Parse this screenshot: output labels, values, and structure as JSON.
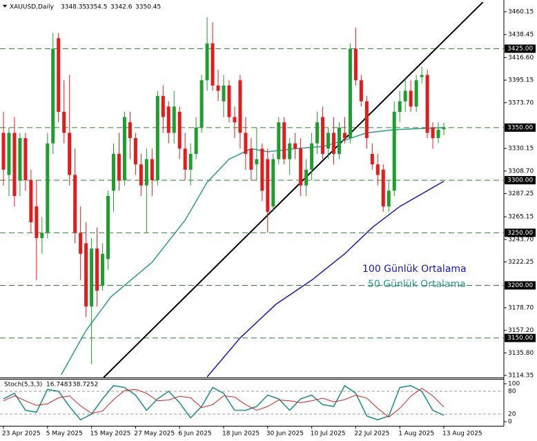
{
  "chart_data": {
    "type": "candlestick",
    "symbol": "XAUUSD,Daily",
    "categories": [
      "23 Apr 2025",
      null,
      null,
      null,
      null,
      null,
      null,
      null,
      "5 May 2025",
      null,
      null,
      null,
      null,
      null,
      null,
      null,
      "15 May 2025",
      null,
      null,
      null,
      null,
      null,
      null,
      null,
      "27 May 2025",
      null,
      null,
      null,
      null,
      null,
      null,
      null,
      "6 Jun 2025",
      null,
      null,
      null,
      null,
      null,
      null,
      null,
      "18 Jun 2025",
      null,
      null,
      null,
      null,
      null,
      null,
      null,
      "30 Jun 2025",
      null,
      null,
      null,
      null,
      null,
      null,
      null,
      "10 Jul 2025",
      null,
      null,
      null,
      null,
      null,
      null,
      null,
      "22 Jul 2025",
      null,
      null,
      null,
      null,
      null,
      null,
      null,
      "1 Aug 2025",
      null,
      null,
      null,
      null,
      null,
      null,
      null,
      "13 Aug 2025"
    ],
    "open": [
      3345,
      3305,
      3345,
      3300,
      3340,
      3300,
      3275,
      3245,
      3250,
      3335,
      3435,
      3365,
      3345,
      3305,
      3250,
      3240,
      3180,
      3235,
      3200,
      3225,
      3290,
      3325,
      3300,
      3355,
      3340,
      3315,
      3295,
      3320,
      3300,
      3380,
      3370,
      3345,
      3365,
      3330,
      3310,
      3325,
      3350,
      3395,
      3430,
      3390,
      3375,
      3390,
      3360,
      3395,
      3345,
      3330,
      3315,
      3330,
      3320,
      3275,
      3320,
      3355,
      3320,
      3335,
      3330,
      3295,
      3310,
      3335,
      3360,
      3330,
      3345,
      3325,
      3345,
      3340,
      3425,
      3395,
      3375,
      3325,
      3315,
      3310,
      3275,
      3290,
      3365,
      3375,
      3385,
      3370,
      3398,
      3400,
      3350,
      3340,
      3348.35
    ],
    "high": [
      3365,
      3350,
      3360,
      3345,
      3345,
      3310,
      3300,
      3265,
      3345,
      3440,
      3440,
      3395,
      3400,
      3330,
      3275,
      3260,
      3245,
      3255,
      3240,
      3290,
      3335,
      3345,
      3365,
      3365,
      3345,
      3325,
      3330,
      3330,
      3385,
      3390,
      3375,
      3385,
      3370,
      3345,
      3335,
      3360,
      3400,
      3455,
      3450,
      3405,
      3400,
      3395,
      3370,
      3400,
      3360,
      3340,
      3350,
      3335,
      3330,
      3325,
      3360,
      3360,
      3340,
      3345,
      3340,
      3320,
      3345,
      3365,
      3370,
      3350,
      3360,
      3355,
      3360,
      3430,
      3445,
      3400,
      3380,
      3335,
      3325,
      3315,
      3300,
      3375,
      3385,
      3395,
      3395,
      3400,
      3408,
      3405,
      3355,
      3355,
      3354.5
    ],
    "low": [
      3295,
      3285,
      3275,
      3285,
      3290,
      3250,
      3205,
      3230,
      3245,
      3325,
      3355,
      3335,
      3295,
      3240,
      3205,
      3170,
      3125,
      3180,
      3195,
      3215,
      3270,
      3290,
      3295,
      3320,
      3305,
      3285,
      3250,
      3285,
      3295,
      3345,
      3335,
      3335,
      3320,
      3300,
      3295,
      3320,
      3345,
      3385,
      3385,
      3375,
      3360,
      3355,
      3340,
      3330,
      3310,
      3300,
      3300,
      3280,
      3250,
      3270,
      3315,
      3315,
      3305,
      3320,
      3285,
      3285,
      3300,
      3325,
      3320,
      3320,
      3315,
      3320,
      3335,
      3335,
      3390,
      3370,
      3330,
      3310,
      3295,
      3270,
      3270,
      3285,
      3355,
      3365,
      3365,
      3365,
      3392,
      3340,
      3330,
      3335,
      3342.6
    ],
    "close": [
      3310,
      3345,
      3285,
      3340,
      3300,
      3260,
      3245,
      3250,
      3335,
      3425,
      3365,
      3345,
      3305,
      3250,
      3230,
      3180,
      3235,
      3195,
      3230,
      3285,
      3325,
      3300,
      3360,
      3340,
      3315,
      3295,
      3320,
      3300,
      3380,
      3360,
      3345,
      3370,
      3330,
      3310,
      3325,
      3350,
      3395,
      3430,
      3390,
      3385,
      3390,
      3360,
      3355,
      3345,
      3325,
      3310,
      3320,
      3290,
      3270,
      3320,
      3355,
      3320,
      3335,
      3330,
      3295,
      3310,
      3335,
      3355,
      3325,
      3345,
      3325,
      3350,
      3340,
      3425,
      3395,
      3375,
      3340,
      3315,
      3305,
      3275,
      3290,
      3365,
      3375,
      3385,
      3370,
      3395,
      3400,
      3345,
      3340,
      3348,
      3350.45
    ],
    "bull_color": "#1e9e2e",
    "bear_color": "#e31b1b",
    "ylim": [
      3112.4,
      3471.3
    ],
    "yticks": [
      3460.15,
      3438.45,
      {
        "value": 3416.6,
        "label": "3416.60"
      },
      3395.15,
      {
        "value": 3373.7,
        "label": "3373.70"
      },
      3330.15,
      {
        "value": 3308.7,
        "label": "3308.70"
      },
      3287.25,
      3265.15,
      {
        "value": 3243.7,
        "label": "3243.70"
      },
      3222.25,
      {
        "value": 3178.7,
        "label": "3178.70"
      },
      {
        "value": 3157.2,
        "label": "3157.20"
      },
      {
        "value": 3135.8,
        "label": "3135.80"
      },
      3114.35
    ],
    "levels": [
      {
        "value": 3425,
        "label": "3425.00"
      },
      {
        "value": 3350,
        "label": "3350.00"
      },
      {
        "value": 3300,
        "label": "3300.00"
      },
      {
        "value": 3250,
        "label": "3250.00"
      },
      {
        "value": 3200,
        "label": "3200.00"
      },
      {
        "value": 3150,
        "label": "3150.00"
      }
    ],
    "level_color": "#2e7d32",
    "trendline": {
      "x": [
        18.2,
        87.1
      ],
      "values": [
        3112.4,
        3469.3
      ],
      "color": "#000000"
    },
    "series": [
      {
        "name": "100 Günlük Ortalama",
        "color": "#1414c8",
        "x": [
          37,
          43,
          49.5,
          56,
          62,
          67,
          72,
          80
        ],
        "values": [
          3113,
          3150,
          3182,
          3205,
          3230,
          3255,
          3275,
          3299
        ]
      },
      {
        "name": "50 Günlük Ortalama",
        "color": "#2a9a8a",
        "x": [
          10.5,
          15,
          19.5,
          27,
          33,
          37,
          41,
          45,
          48,
          53,
          58,
          62,
          66,
          71,
          80
        ],
        "values": [
          3115,
          3157,
          3189,
          3222,
          3262,
          3298,
          3320,
          3330,
          3327,
          3330,
          3332,
          3338,
          3345,
          3348,
          3350
        ]
      }
    ],
    "stoch": {
      "title": "Stoch(5,3,3)",
      "x": [
        0,
        2,
        4,
        6,
        8,
        10,
        12,
        14,
        16,
        18,
        20,
        22,
        24,
        26,
        28,
        30,
        32,
        34,
        36,
        38,
        40,
        42,
        44,
        46,
        48,
        50,
        52,
        54,
        56,
        58,
        60,
        62,
        64,
        66,
        68,
        70,
        72,
        74,
        76,
        78,
        80
      ],
      "k": [
        60,
        75,
        30,
        25,
        85,
        80,
        40,
        5,
        20,
        60,
        95,
        90,
        70,
        30,
        60,
        80,
        50,
        10,
        40,
        90,
        75,
        30,
        30,
        40,
        70,
        60,
        30,
        60,
        70,
        45,
        40,
        95,
        75,
        15,
        5,
        15,
        90,
        95,
        80,
        30,
        16.7483
      ],
      "d": [
        55,
        68,
        55,
        43,
        47,
        63,
        68,
        42,
        22,
        28,
        58,
        82,
        85,
        75,
        55,
        57,
        67,
        63,
        37,
        45,
        68,
        65,
        45,
        30,
        40,
        57,
        55,
        50,
        55,
        62,
        52,
        58,
        70,
        62,
        35,
        12,
        35,
        67,
        88,
        68,
        38.7252
      ],
      "k_color": "#1f8f8f",
      "d_color": "#e31b1b",
      "ylim": [
        0,
        100
      ],
      "yticks": [
        100,
        80,
        20,
        0
      ]
    }
  }
}
